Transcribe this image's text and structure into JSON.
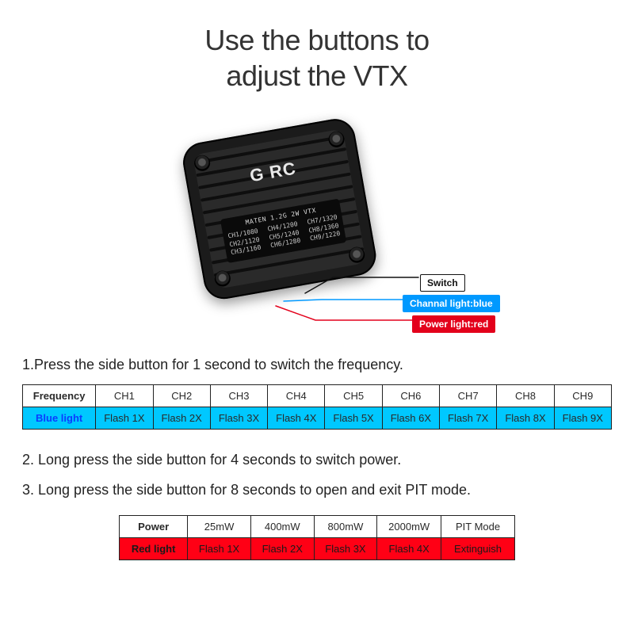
{
  "title_line1": "Use the buttons to",
  "title_line2": "adjust the VTX",
  "module": {
    "brand": "G  RC",
    "plate_title": "MATEN 1.2G 2W VTX",
    "plate_cols": [
      [
        "CH1/1080",
        "CH2/1120",
        "CH3/1160"
      ],
      [
        "CH4/1200",
        "CH5/1240",
        "CH6/1280"
      ],
      [
        "CH7/1320",
        "CH8/1360",
        "CH9/1220"
      ]
    ]
  },
  "callouts": {
    "switch": "Switch",
    "channel": "Channal light:blue",
    "power": "Power light:red",
    "colors": {
      "switch_line": "#111111",
      "channel_line": "#0099ff",
      "power_line": "#e3001b"
    }
  },
  "instructions": {
    "i1": "1.Press the side button for 1 second to switch the frequency.",
    "i2": "2. Long press the side button for 4 seconds to switch power.",
    "i3": "3. Long press the side button for 8 seconds to open and exit PIT mode."
  },
  "freq_table": {
    "row_label": "Frequency",
    "row2_label": "Blue light",
    "channels": [
      "CH1",
      "CH2",
      "CH3",
      "CH4",
      "CH5",
      "CH6",
      "CH7",
      "CH8",
      "CH9"
    ],
    "flashes": [
      "Flash 1X",
      "Flash 2X",
      "Flash 3X",
      "Flash 4X",
      "Flash 5X",
      "Flash 6X",
      "Flash 7X",
      "Flash 8X",
      "Flash 9X"
    ],
    "row_bg": "#00c8ff",
    "label_text_color": "#0b3cff"
  },
  "power_table": {
    "row_label": "Power",
    "row2_label": "Red light",
    "levels": [
      "25mW",
      "400mW",
      "800mW",
      "2000mW",
      "PIT Mode"
    ],
    "flashes": [
      "Flash 1X",
      "Flash 2X",
      "Flash 3X",
      "Flash 4X",
      "Extinguish"
    ],
    "row_bg": "#ff0015"
  },
  "styling": {
    "title_fontsize": 36,
    "body_fontsize": 18,
    "table_fontsize": 13,
    "module_bg": "#1b1b1b",
    "module_inner": "#2a2a2a",
    "fin_color": "#0e0e0e"
  }
}
